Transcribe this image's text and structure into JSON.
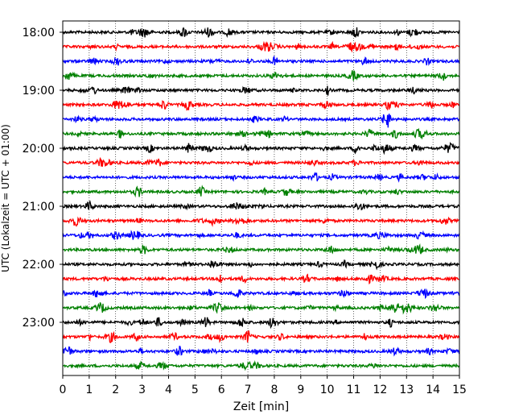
{
  "chart_data": {
    "type": "line",
    "title": "",
    "xlabel": "Zeit  [min]",
    "ylabel": "UTC (Lokalzeit = UTC + 01:00)",
    "xlim": [
      0,
      15
    ],
    "x_ticks": [
      "0",
      "1",
      "2",
      "3",
      "4",
      "5",
      "6",
      "7",
      "8",
      "9",
      "10",
      "11",
      "12",
      "13",
      "14",
      "15"
    ],
    "y_tick_labels": [
      "18:00",
      "19:00",
      "20:00",
      "21:00",
      "22:00",
      "23:00"
    ],
    "grid": "vertical dotted at each minute",
    "trace_interval_min": 15,
    "trace_colors": [
      "#000000",
      "#ff0000",
      "#0000ff",
      "#008000"
    ],
    "series": [
      {
        "start": "18:00",
        "color": "#000000"
      },
      {
        "start": "18:15",
        "color": "#ff0000"
      },
      {
        "start": "18:30",
        "color": "#0000ff"
      },
      {
        "start": "18:45",
        "color": "#008000"
      },
      {
        "start": "19:00",
        "color": "#000000"
      },
      {
        "start": "19:15",
        "color": "#ff0000"
      },
      {
        "start": "19:30",
        "color": "#0000ff"
      },
      {
        "start": "19:45",
        "color": "#008000"
      },
      {
        "start": "20:00",
        "color": "#000000"
      },
      {
        "start": "20:15",
        "color": "#ff0000"
      },
      {
        "start": "20:30",
        "color": "#0000ff"
      },
      {
        "start": "20:45",
        "color": "#008000"
      },
      {
        "start": "21:00",
        "color": "#000000"
      },
      {
        "start": "21:15",
        "color": "#ff0000"
      },
      {
        "start": "21:30",
        "color": "#0000ff"
      },
      {
        "start": "21:45",
        "color": "#008000"
      },
      {
        "start": "22:00",
        "color": "#000000"
      },
      {
        "start": "22:15",
        "color": "#ff0000"
      },
      {
        "start": "22:30",
        "color": "#0000ff"
      },
      {
        "start": "22:45",
        "color": "#008000"
      },
      {
        "start": "23:00",
        "color": "#000000"
      },
      {
        "start": "23:15",
        "color": "#ff0000"
      },
      {
        "start": "23:30",
        "color": "#0000ff"
      },
      {
        "start": "23:45",
        "color": "#008000"
      }
    ]
  }
}
